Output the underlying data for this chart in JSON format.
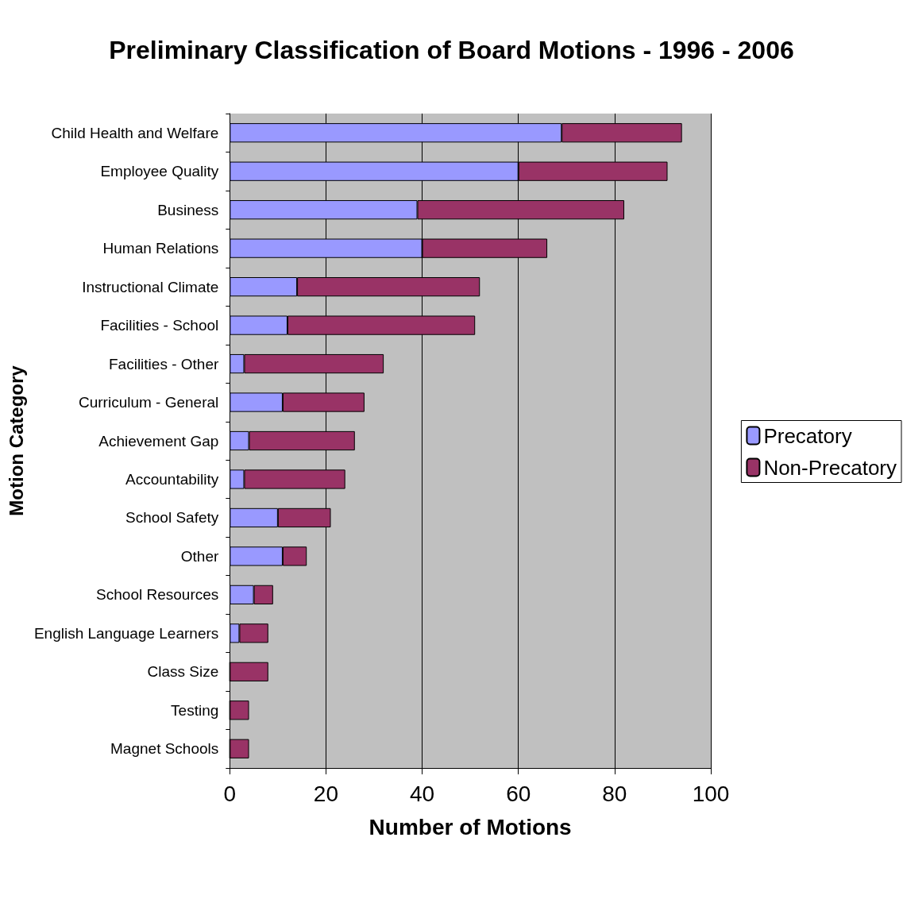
{
  "chart_data": {
    "type": "bar",
    "orientation": "horizontal",
    "stacked": true,
    "title": "Preliminary Classification of Board Motions - 1996 - 2006",
    "xlabel": "Number of Motions",
    "ylabel": "Motion Category",
    "categories": [
      "Child Health and Welfare",
      "Employee Quality",
      "Business",
      "Human Relations",
      "Instructional Climate",
      "Facilities - School",
      "Facilities - Other",
      "Curriculum - General",
      "Achievement Gap",
      "Accountability",
      "School Safety",
      "Other",
      "School Resources",
      "English Language Learners",
      "Class Size",
      "Testing",
      "Magnet Schools"
    ],
    "series": [
      {
        "name": "Precatory",
        "color": "#9999ff",
        "values": [
          69,
          60,
          39,
          40,
          14,
          12,
          3,
          11,
          4,
          3,
          10,
          11,
          5,
          2,
          0,
          0,
          0
        ]
      },
      {
        "name": "Non-Precatory",
        "color": "#993366",
        "values": [
          25,
          31,
          43,
          26,
          38,
          39,
          29,
          17,
          22,
          21,
          11,
          5,
          4,
          6,
          8,
          4,
          4
        ]
      }
    ],
    "xlim": [
      0,
      100
    ],
    "xticks": [
      0,
      20,
      40,
      60,
      80,
      100
    ],
    "grid": "x",
    "legend": "right"
  }
}
